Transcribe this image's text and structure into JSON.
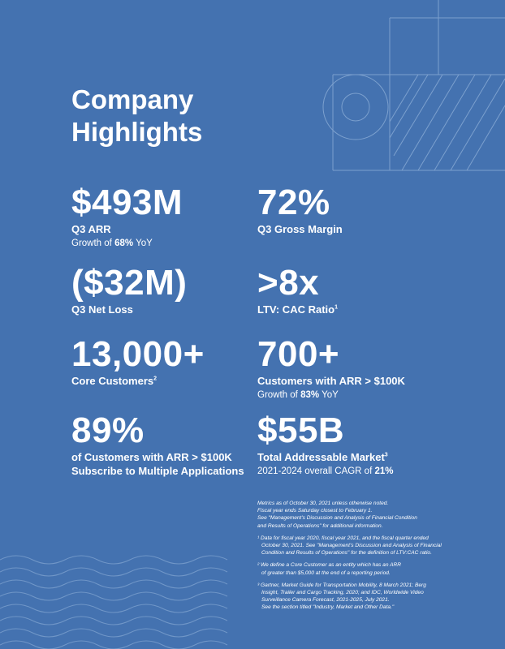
{
  "title_line1": "Company",
  "title_line2": "Highlights",
  "stats": {
    "arr": {
      "value": "$493M",
      "label": "Q3 ARR",
      "sub_pre": "Growth of ",
      "sub_bold": "68%",
      "sub_post": " YoY"
    },
    "gross_margin": {
      "value": "72%",
      "label": "Q3 Gross Margin"
    },
    "net_loss": {
      "value": "($32M)",
      "label": "Q3 Net Loss"
    },
    "ltv": {
      "value": ">8x",
      "label": "LTV: CAC Ratio",
      "sup": "1"
    },
    "customers": {
      "value": "13,000+",
      "label": "Core Customers",
      "sup": "2"
    },
    "big_customers": {
      "value": "700+",
      "label": "Customers with ARR > $100K",
      "sub_pre": "Growth of ",
      "sub_bold": "83%",
      "sub_post": " YoY"
    },
    "multi_app": {
      "value": "89%",
      "label1": "of Customers with ARR > $100K",
      "label2": "Subscribe to Multiple Applications"
    },
    "tam": {
      "value": "$55B",
      "label": "Total Addressable Market",
      "sup": "3",
      "sub_pre": "2021-2024 overall CAGR of ",
      "sub_bold": "21%"
    }
  },
  "notes": {
    "intro": [
      "Metrics as of October 30, 2021 unless otherwise noted.",
      "Fiscal year ends Saturday closest to February 1.",
      "See \"Management's Discussion and Analysis of Financial Condition",
      "and Results of Operations\" for additional information."
    ],
    "fn1": [
      "¹ Data for fiscal year 2020, fiscal year 2021, and the fiscal quarter ended",
      "October 30, 2021. See \"Management's Discussion and Analysis of Financial",
      "Condition and Results of Operations\" for the definition of LTV:CAC ratio."
    ],
    "fn2": [
      "² We define a Core Customer as an entity which has an ARR",
      "of greater than $5,000 at the end of a reporting period."
    ],
    "fn3": [
      "³ Gartner, Market Guide for Transportation Mobility, 8 March 2021; Berg",
      "Insight, Trailer and Cargo Tracking, 2020; and IDC, Worldwide Video",
      "Surveillance Camera Forecast, 2021-2025, July 2021.",
      "See the section titled \"Industry, Market and Other Data.\""
    ]
  },
  "colors": {
    "background": "#4472b0",
    "text": "#ffffff",
    "line_art": "#8fb0d8"
  }
}
